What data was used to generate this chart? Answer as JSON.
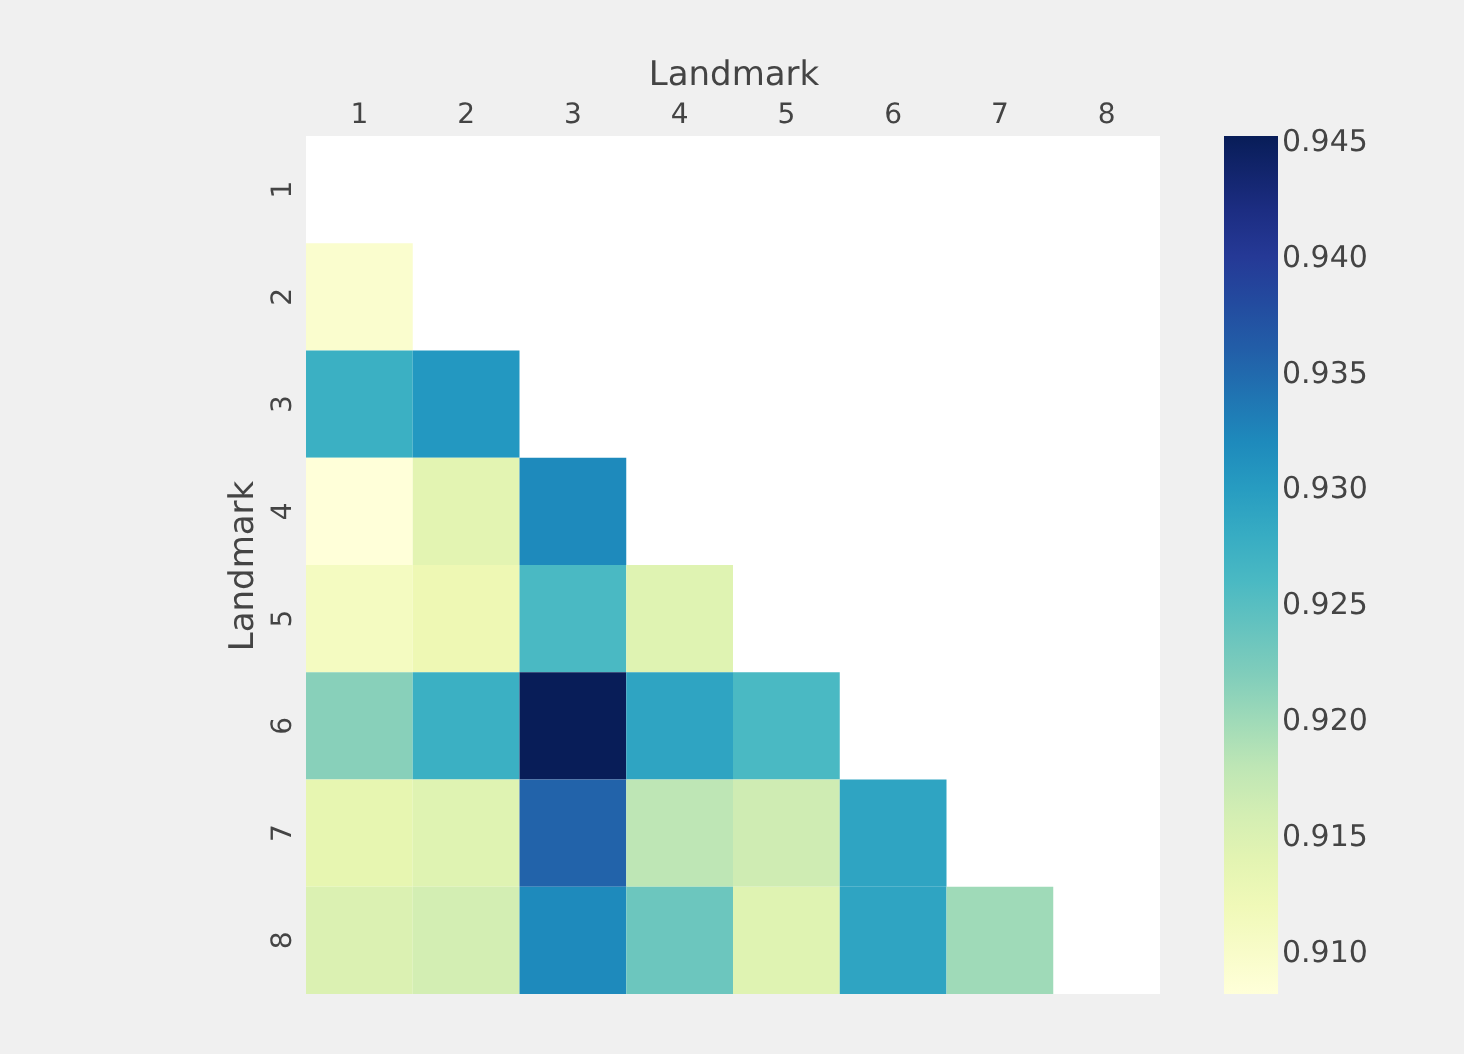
{
  "chart_data": {
    "type": "heatmap",
    "xlabel": "Landmark",
    "ylabel": "Landmark",
    "categories": [
      "1",
      "2",
      "3",
      "4",
      "5",
      "6",
      "7",
      "8"
    ],
    "y_categories": [
      "1",
      "2",
      "3",
      "4",
      "5",
      "6",
      "7",
      "8"
    ],
    "cells": [
      [
        null,
        null,
        null,
        null,
        null,
        null,
        null,
        null
      ],
      [
        0.9095,
        null,
        null,
        null,
        null,
        null,
        null,
        null
      ],
      [
        0.9275,
        0.9305,
        null,
        null,
        null,
        null,
        null,
        null
      ],
      [
        0.9082,
        0.914,
        0.932,
        null,
        null,
        null,
        null,
        null
      ],
      [
        0.911,
        0.9125,
        0.926,
        0.9145,
        null,
        null,
        null,
        null
      ],
      [
        0.9215,
        0.9275,
        0.9452,
        0.929,
        0.926,
        null,
        null,
        null
      ],
      [
        0.9135,
        0.9145,
        0.9355,
        0.918,
        0.9165,
        0.929,
        null,
        null
      ],
      [
        0.915,
        0.916,
        0.932,
        0.9235,
        0.9145,
        0.929,
        0.92,
        null
      ]
    ],
    "clim": [
      0.9082,
      0.9452
    ],
    "cticks": [
      {
        "value": 0.91,
        "label": "0.910"
      },
      0.915,
      {
        "value": 0.92,
        "label": "0.920"
      },
      0.925,
      {
        "value": 0.93,
        "label": "0.930"
      },
      0.935,
      {
        "value": 0.94,
        "label": "0.940"
      },
      0.945
    ],
    "grid": false
  }
}
